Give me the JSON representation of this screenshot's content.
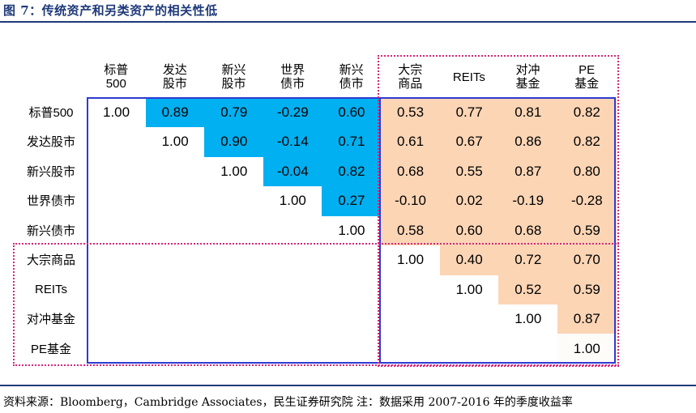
{
  "header": {
    "title": "图 7：传统资产和另类资产的相关性低"
  },
  "footer": {
    "source": "资料来源：Bloomberg，Cambridge Associates，民生证券研究院  注：数据采用 2007-2016 年的季度收益率"
  },
  "colors": {
    "blue": "#00B0F0",
    "peach": "#FCD5B5",
    "ivory": "#FDFCF9",
    "frame_blue": "#2F3BD0",
    "frame_pink": "#D6267A",
    "title_blue": "#1F3A7A"
  },
  "chart_data": {
    "type": "table",
    "title": "图 7：传统资产和另类资产的相关性低",
    "columns": [
      "标普\n500",
      "发达\n股市",
      "新兴\n股市",
      "世界\n债市",
      "新兴\n债市",
      "大宗\n商品",
      "REITs",
      "对冲\n基金",
      "PE\n基金"
    ],
    "rows": [
      "标普500",
      "发达股市",
      "新兴股市",
      "世界债市",
      "新兴债市",
      "大宗商品",
      "REITs",
      "对冲基金",
      "PE基金"
    ],
    "values": [
      [
        "1.00",
        "0.89",
        "0.79",
        "-0.29",
        "0.60",
        "0.53",
        "0.77",
        "0.81",
        "0.82"
      ],
      [
        "",
        "1.00",
        "0.90",
        "-0.14",
        "0.71",
        "0.61",
        "0.67",
        "0.86",
        "0.82"
      ],
      [
        "",
        "",
        "1.00",
        "-0.04",
        "0.82",
        "0.68",
        "0.55",
        "0.87",
        "0.80"
      ],
      [
        "",
        "",
        "",
        "1.00",
        "0.27",
        "-0.10",
        "0.02",
        "-0.19",
        "-0.28"
      ],
      [
        "",
        "",
        "",
        "",
        "1.00",
        "0.58",
        "0.60",
        "0.68",
        "0.59"
      ],
      [
        "",
        "",
        "",
        "",
        "",
        "1.00",
        "0.40",
        "0.72",
        "0.70"
      ],
      [
        "",
        "",
        "",
        "",
        "",
        "",
        "1.00",
        "0.52",
        "0.59"
      ],
      [
        "",
        "",
        "",
        "",
        "",
        "",
        "",
        "1.00",
        "0.87"
      ],
      [
        "",
        "",
        "",
        "",
        "",
        "",
        "",
        "",
        "1.00"
      ]
    ],
    "legend": [],
    "grid": false
  }
}
